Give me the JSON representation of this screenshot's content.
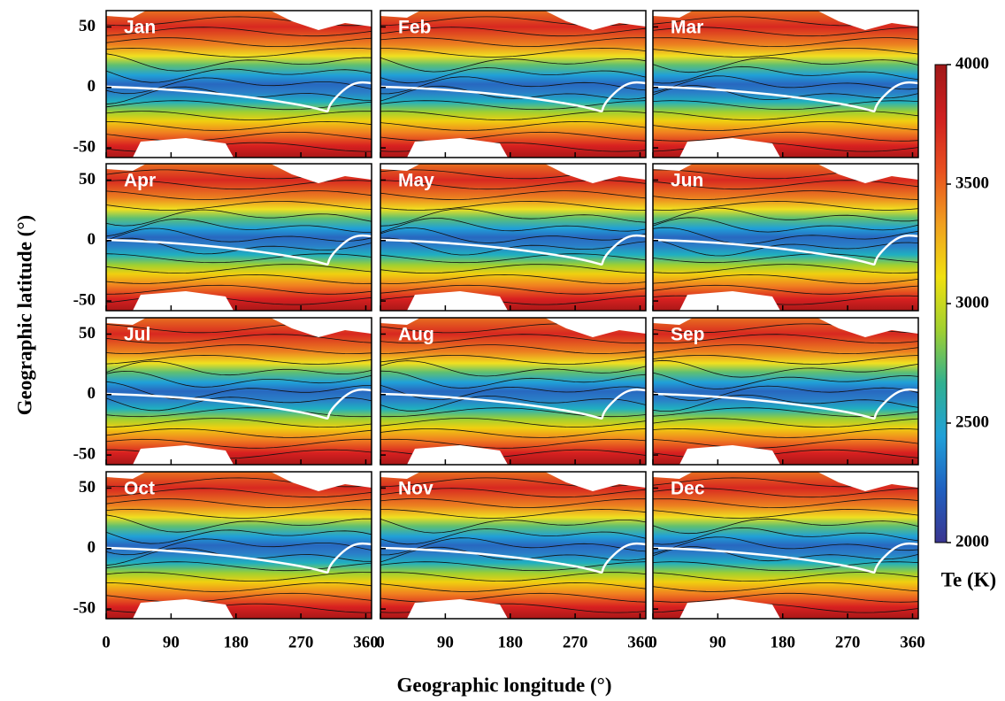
{
  "chart_data": {
    "type": "contour",
    "x_label": "Geographic longitude (°)",
    "y_label": "Geographic latitude (°)",
    "panels": [
      "Jan",
      "Feb",
      "Mar",
      "Apr",
      "May",
      "Jun",
      "Jul",
      "Aug",
      "Sep",
      "Oct",
      "Nov",
      "Dec"
    ],
    "xlim": [
      0,
      368
    ],
    "xticks": [
      0,
      90,
      180,
      270,
      360
    ],
    "ylim": [
      -58,
      63.5
    ],
    "yticks": [
      -50,
      0,
      50
    ],
    "colorbar": {
      "label": "Te (K)",
      "lim": [
        2000,
        4000
      ],
      "ticks": [
        2000,
        2500,
        3000,
        3500,
        4000
      ],
      "colormap": [
        "#3a3590",
        "#2060c0",
        "#20a0d8",
        "#30b090",
        "#a0d030",
        "#f0e010",
        "#f0a020",
        "#e85020",
        "#d02020",
        "#a01818"
      ]
    }
  }
}
